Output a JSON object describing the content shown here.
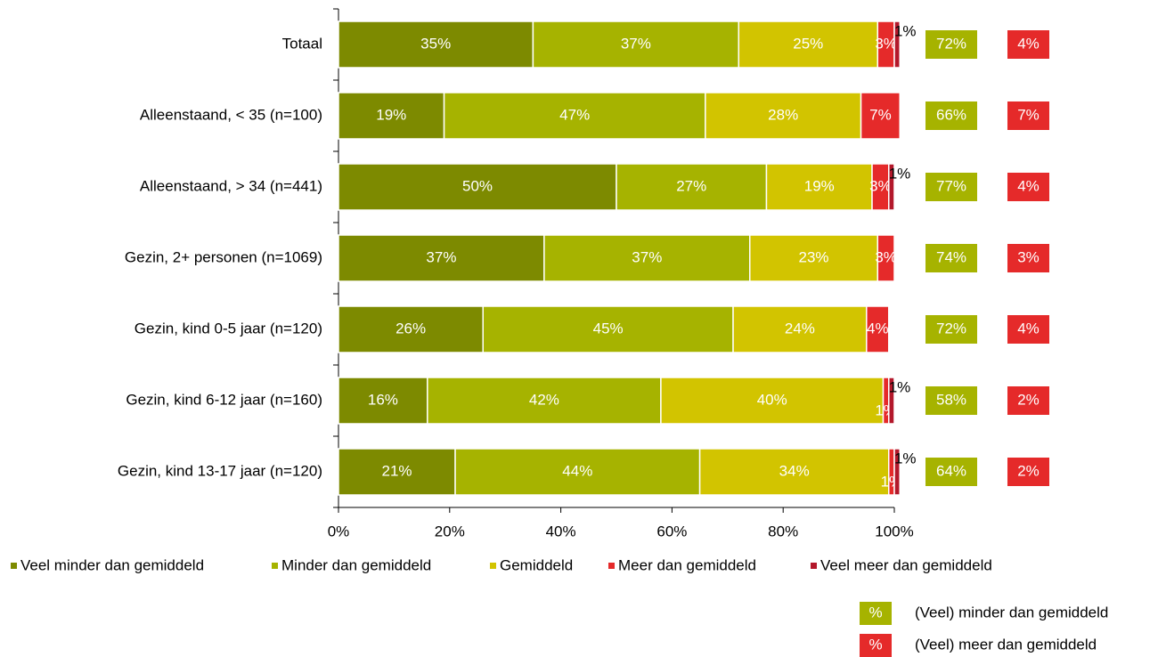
{
  "chart_data": {
    "type": "stacked-bar-horizontal",
    "categories": [
      "Totaal",
      "Alleenstaand, < 35 (n=100)",
      "Alleenstaand, > 34 (n=441)",
      "Gezin, 2+ personen (n=1069)",
      "Gezin, kind 0-5 jaar (n=120)",
      "Gezin, kind 6-12 jaar (n=160)",
      "Gezin, kind 13-17 jaar (n=120)"
    ],
    "series": [
      {
        "name": "Veel minder dan gemiddeld",
        "color": "#7d8a00",
        "values": [
          35,
          19,
          50,
          37,
          26,
          16,
          21
        ],
        "value_labels": [
          "35%",
          "19%",
          "50%",
          "37%",
          "26%",
          "16%",
          "21%"
        ]
      },
      {
        "name": "Minder dan gemiddeld",
        "color": "#a6b300",
        "values": [
          37,
          47,
          27,
          37,
          45,
          42,
          44
        ],
        "value_labels": [
          "37%",
          "47%",
          "27%",
          "37%",
          "45%",
          "42%",
          "44%"
        ]
      },
      {
        "name": "Gemiddeld",
        "color": "#d2c400",
        "values": [
          25,
          28,
          19,
          23,
          24,
          40,
          34
        ],
        "value_labels": [
          "25%",
          "28%",
          "19%",
          "23%",
          "24%",
          "40%",
          "34%"
        ]
      },
      {
        "name": "Meer dan gemiddeld",
        "color": "#e52a2a",
        "values": [
          3,
          7,
          3,
          3,
          4,
          1,
          1
        ],
        "value_labels": [
          "3%",
          "7%",
          "3%",
          "3%",
          "4%",
          "1%",
          "1%"
        ]
      },
      {
        "name": "Veel meer dan gemiddeld",
        "color": "#b3182b",
        "values": [
          1,
          0,
          1,
          0,
          0,
          1,
          1
        ],
        "value_labels": [
          "1%",
          null,
          "1%",
          null,
          null,
          "1%",
          "1%"
        ]
      }
    ],
    "summaries": [
      {
        "name": "(Veel) minder dan gemiddeld",
        "color": "#a6b300",
        "values": [
          72,
          66,
          77,
          74,
          72,
          58,
          64
        ],
        "value_labels": [
          "72%",
          "66%",
          "77%",
          "74%",
          "72%",
          "58%",
          "64%"
        ]
      },
      {
        "name": "(Veel) meer dan gemiddeld",
        "color": "#e52a2a",
        "values": [
          4,
          7,
          4,
          3,
          4,
          2,
          2
        ],
        "value_labels": [
          "4%",
          "7%",
          "4%",
          "3%",
          "4%",
          "2%",
          "2%"
        ]
      }
    ],
    "summary_symbol": "%",
    "xlim": [
      0,
      100
    ],
    "xticks": [
      {
        "value": 0,
        "label": "0%"
      },
      {
        "value": 20,
        "label": "20%"
      },
      {
        "value": 40,
        "label": "40%"
      },
      {
        "value": 60,
        "label": "60%"
      },
      {
        "value": 80,
        "label": "80%"
      },
      {
        "value": 100,
        "label": "100%"
      }
    ]
  }
}
